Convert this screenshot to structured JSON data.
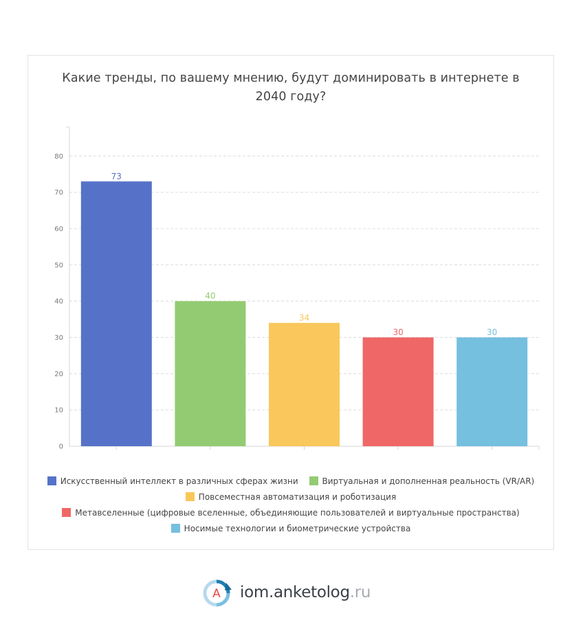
{
  "chart_data": {
    "type": "bar",
    "title": "Какие тренды, по вашему мнению, будут доминировать в интернете в 2040 году?",
    "categories": [
      "Искусственный интеллект в различных сферах жизни",
      "Виртуальная и дополненная реальность (VR/AR)",
      "Повсеместная автоматизация и роботизация",
      "Метавселенные (цифровые вселенные, объединяющие пользователей и виртуальные пространства)",
      "Носимые технологии и биометрические устройства"
    ],
    "values": [
      73,
      40,
      34,
      30,
      30
    ],
    "colors": [
      "#5672c8",
      "#93cb72",
      "#f9c75b",
      "#ef6767",
      "#75bfdf"
    ],
    "ylim": [
      0,
      88
    ],
    "yticks": [
      0,
      10,
      20,
      30,
      40,
      50,
      60,
      70,
      80
    ],
    "grid": true,
    "legend_position": "bottom"
  },
  "footer": {
    "logo_letter": "A",
    "brand_main": "iom.anketolog",
    "brand_tld": ".ru"
  }
}
